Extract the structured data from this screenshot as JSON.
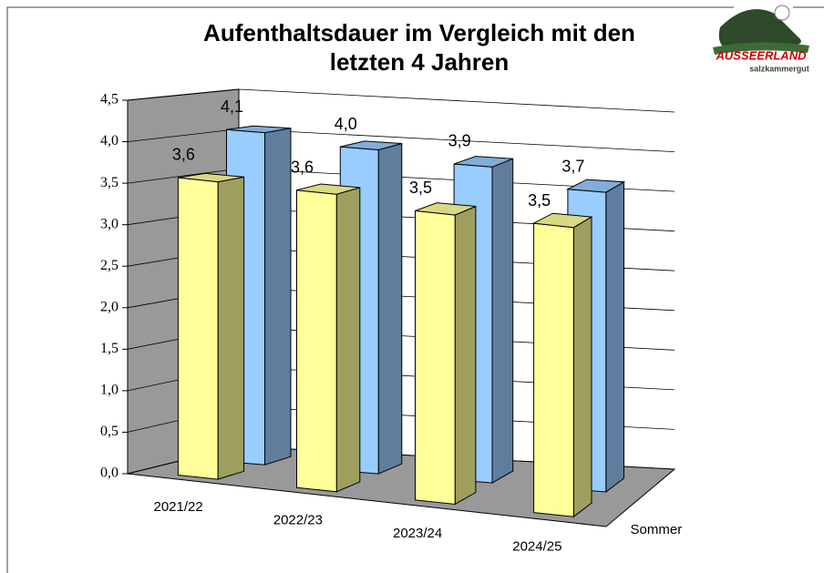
{
  "chart_data": {
    "type": "bar3d",
    "title": "Aufenthaltsdauer im Vergleich mit den letzten 4 Jahren",
    "categories": [
      "2021/22",
      "2022/23",
      "2023/24",
      "2024/25"
    ],
    "series": [
      {
        "name": "Sommer",
        "color": "#ffff99",
        "values": [
          3.6,
          3.6,
          3.5,
          3.5
        ],
        "value_labels": [
          "3,6",
          "3,6",
          "3,5",
          "3,5"
        ]
      },
      {
        "name": null,
        "color": "#99ccff",
        "values": [
          4.1,
          4.0,
          3.9,
          3.7
        ],
        "value_labels": [
          "4,1",
          "4,0",
          "3,9",
          "3,7"
        ]
      }
    ],
    "ylim": [
      0,
      4.5
    ],
    "yticks": [
      {
        "value": 0,
        "label": "0,0"
      },
      {
        "value": 0.5,
        "label": "0,5"
      },
      {
        "value": 1,
        "label": "1,0"
      },
      {
        "value": 1.5,
        "label": "1,5"
      },
      {
        "value": 2,
        "label": "2,0"
      },
      {
        "value": 2.5,
        "label": "2,5"
      },
      {
        "value": 3,
        "label": "3,0"
      },
      {
        "value": 3.5,
        "label": "3,5"
      },
      {
        "value": 4,
        "label": "4,0"
      },
      {
        "value": 4.5,
        "label": "4,5"
      }
    ],
    "grid": true
  },
  "logo": {
    "name": "AUSSEERLAND",
    "tagline": "salzkammergut"
  }
}
